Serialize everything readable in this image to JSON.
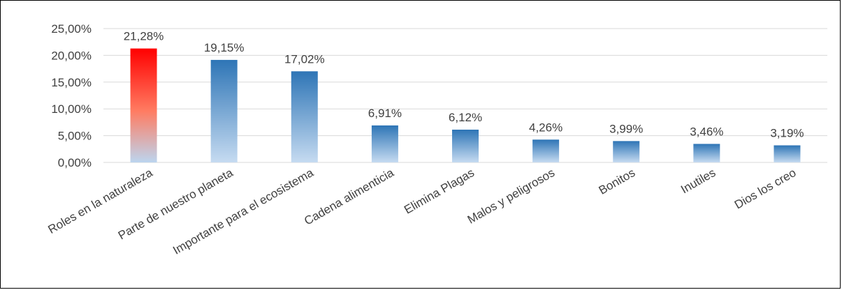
{
  "chart_data": {
    "type": "bar",
    "categories": [
      "Roles en la naturaleza",
      "Parte de nuestro planeta",
      "Importante para el ecosistema",
      "Cadena alimenticia",
      "Elimina Plagas",
      "Malos y peligrosos",
      "Bonitos",
      "Inutiles",
      "Dios los creo"
    ],
    "values": [
      21.28,
      19.15,
      17.02,
      6.91,
      6.12,
      4.26,
      3.99,
      3.46,
      3.19
    ],
    "data_labels": [
      "21,28%",
      "19,15%",
      "17,02%",
      "6,91%",
      "6,12%",
      "4,26%",
      "3,99%",
      "3,46%",
      "3,19%"
    ],
    "y_ticks": [
      0,
      5,
      10,
      15,
      20,
      25
    ],
    "y_tick_labels": [
      "0,00%",
      "5,00%",
      "10,00%",
      "15,00%",
      "20,00%",
      "25,00%"
    ],
    "ylim": [
      0,
      25
    ],
    "title": "",
    "xlabel": "",
    "ylabel": "",
    "grid": true,
    "legend": "none",
    "colors": {
      "highlight_top": "#ff0000",
      "highlight_mid": "#ff7c62",
      "highlight_bottom": "#bcd5ef",
      "bar_top": "#2e75b6",
      "bar_bottom": "#c6dbf1",
      "gridline": "#d9d9d9",
      "text": "#404040"
    }
  }
}
